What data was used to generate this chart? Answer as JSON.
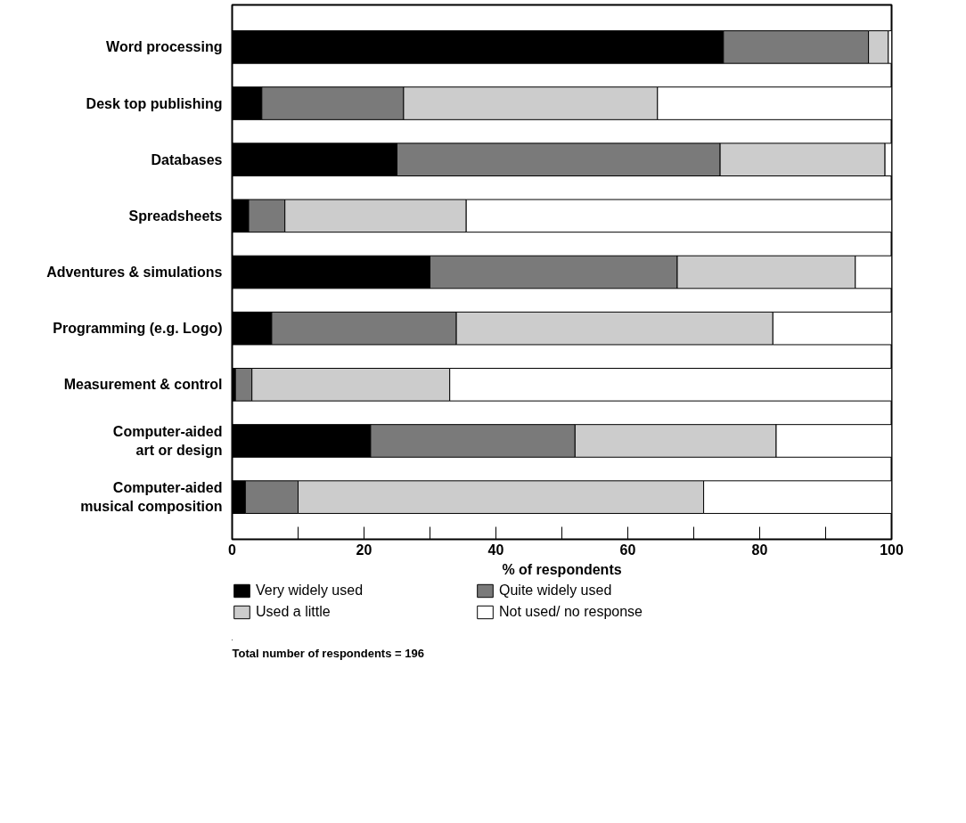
{
  "chart_data": {
    "type": "bar",
    "orientation": "horizontal",
    "stacked": true,
    "categories": [
      "Word processing",
      "Desk top publishing",
      "Databases",
      "Spreadsheets",
      "Adventures & simulations",
      "Programming (e.g. Logo)",
      "Measurement & control",
      "Computer-aided\nart or design",
      "Computer-aided\nmusical composition"
    ],
    "series": [
      {
        "name": "Very widely used",
        "color": "#000000",
        "values": [
          74.5,
          4.5,
          25,
          2.5,
          30,
          6,
          0.5,
          21,
          2
        ]
      },
      {
        "name": "Quite widely used",
        "color": "#7a7a7a",
        "values": [
          22,
          21.5,
          49,
          5.5,
          37.5,
          28,
          2.5,
          31,
          8
        ]
      },
      {
        "name": "Used a little",
        "color": "#cccccc",
        "values": [
          3,
          38.5,
          25,
          27.5,
          27,
          48,
          30,
          30.5,
          61.5
        ]
      },
      {
        "name": "Not used/ no response",
        "color": "#ffffff",
        "values": [
          0.5,
          35.5,
          1,
          64.5,
          5.5,
          18,
          67,
          17.5,
          28.5
        ]
      }
    ],
    "xlabel": "% of respondents",
    "xlim": [
      0,
      100
    ],
    "xticks": [
      0,
      {
        "value": 10,
        "label": null
      },
      20,
      {
        "value": 30,
        "label": null
      },
      40,
      {
        "value": 50,
        "label": null
      },
      60,
      {
        "value": 70,
        "label": null
      },
      80,
      {
        "value": 90,
        "label": null
      },
      100
    ],
    "grid": false,
    "legend": "bottom",
    "annotations": [
      "Total number of respondents = 196"
    ]
  }
}
